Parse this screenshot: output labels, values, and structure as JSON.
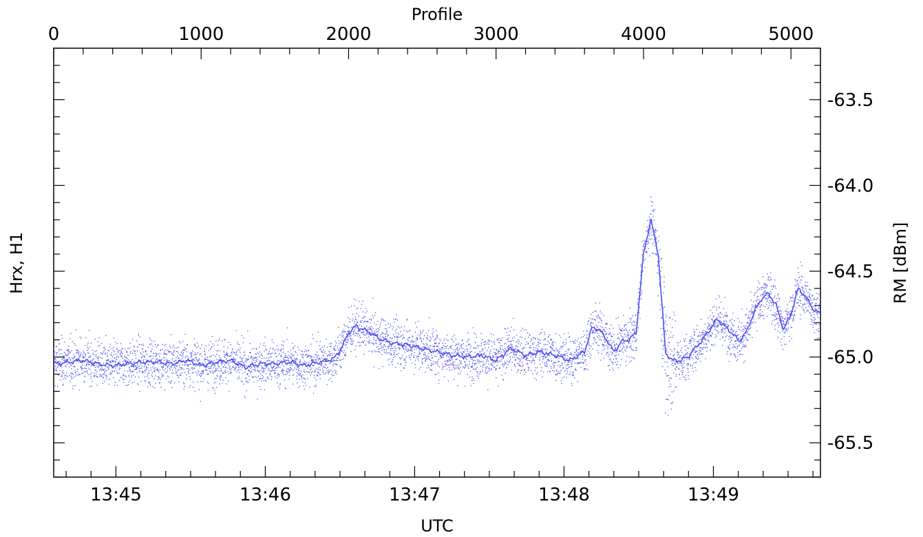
{
  "chart_data": {
    "type": "scatter",
    "top_axis": {
      "label": "Profile",
      "ticks": [
        "0",
        "1000",
        "2000",
        "3000",
        "4000",
        "5000"
      ],
      "range": [
        0,
        5200
      ]
    },
    "bottom_axis": {
      "label": "UTC",
      "ticks": [
        "13:45",
        "13:46",
        "13:47",
        "13:48",
        "13:49"
      ],
      "range": [
        "13:44:35",
        "13:49:43"
      ]
    },
    "left_axis": {
      "label": "Hrx, H1"
    },
    "right_axis": {
      "label": "RM [dBm]",
      "ticks": [
        "-63.5",
        "-64.0",
        "-64.5",
        "-65.0",
        "-65.5"
      ],
      "range": [
        -65.7,
        -63.2
      ]
    },
    "colors": {
      "series": "#4b4bf0"
    },
    "grid": false,
    "series": [
      {
        "kind": "scatter",
        "description_source": "per-profile samples, noisy around smoothed line",
        "noise_std": 0.13
      },
      {
        "kind": "line",
        "x_profile": [
          0,
          100,
          200,
          300,
          400,
          500,
          600,
          700,
          800,
          900,
          1000,
          1100,
          1200,
          1300,
          1400,
          1500,
          1600,
          1700,
          1800,
          1900,
          1950,
          2000,
          2050,
          2100,
          2150,
          2200,
          2300,
          2400,
          2500,
          2600,
          2700,
          2800,
          2900,
          3000,
          3100,
          3200,
          3300,
          3400,
          3500,
          3600,
          3650,
          3700,
          3750,
          3800,
          3850,
          3900,
          3950,
          4000,
          4050,
          4100,
          4150,
          4200,
          4250,
          4300,
          4350,
          4400,
          4500,
          4600,
          4650,
          4700,
          4750,
          4800,
          4850,
          4900,
          4950,
          5000,
          5050,
          5100,
          5150,
          5200
        ],
        "y_dbm": [
          -65.04,
          -65.03,
          -65.02,
          -65.04,
          -65.05,
          -65.04,
          -65.03,
          -65.03,
          -65.04,
          -65.02,
          -65.05,
          -65.03,
          -65.02,
          -65.06,
          -65.04,
          -65.04,
          -65.03,
          -65.05,
          -65.03,
          -65.01,
          -64.95,
          -64.86,
          -64.82,
          -64.84,
          -64.86,
          -64.89,
          -64.92,
          -64.93,
          -64.95,
          -64.97,
          -64.99,
          -65.0,
          -64.99,
          -65.02,
          -64.95,
          -64.99,
          -64.97,
          -64.99,
          -65.02,
          -64.97,
          -64.83,
          -64.84,
          -64.9,
          -64.97,
          -64.91,
          -64.9,
          -64.86,
          -64.4,
          -64.2,
          -64.4,
          -64.98,
          -65.02,
          -65.02,
          -65.0,
          -64.95,
          -64.9,
          -64.78,
          -64.86,
          -64.91,
          -64.85,
          -64.74,
          -64.66,
          -64.63,
          -64.7,
          -64.84,
          -64.75,
          -64.6,
          -64.65,
          -64.72,
          -64.75
        ]
      }
    ]
  }
}
